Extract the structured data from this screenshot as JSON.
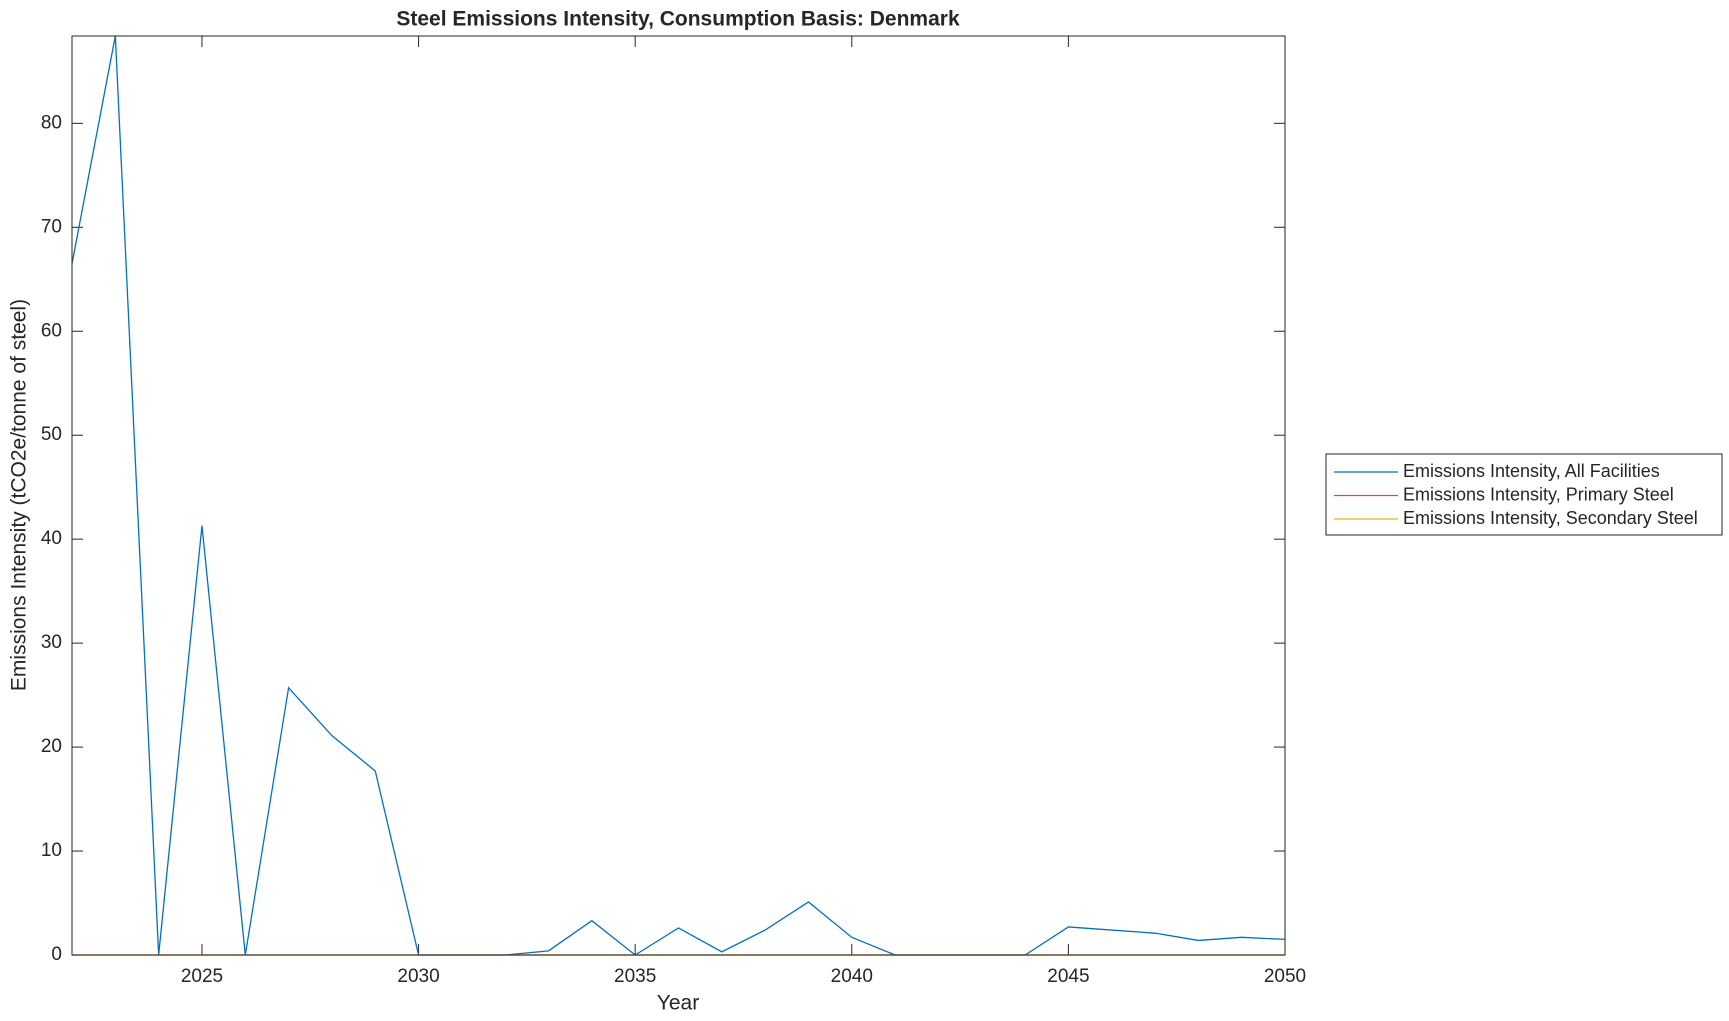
{
  "chart_data": {
    "type": "line",
    "title": "Steel Emissions Intensity, Consumption Basis: Denmark",
    "x_label": "Year",
    "y_label": "Emissions Intensity (tCO2e/tonne of steel)",
    "x": [
      2022,
      2023,
      2024,
      2025,
      2026,
      2027,
      2028,
      2029,
      2030,
      2031,
      2032,
      2033,
      2034,
      2035,
      2036,
      2037,
      2038,
      2039,
      2040,
      2041,
      2042,
      2043,
      2044,
      2045,
      2046,
      2047,
      2048,
      2049,
      2050
    ],
    "series": [
      {
        "name": "Emissions Intensity, All Facilities",
        "color": "#0072bd",
        "values": [
          66.5,
          88.4,
          0,
          41.3,
          0,
          25.7,
          21.1,
          17.7,
          0,
          0,
          0,
          0.4,
          3.3,
          0,
          2.6,
          0.3,
          2.4,
          5.1,
          1.7,
          0,
          0,
          0,
          0,
          2.7,
          2.4,
          2.1,
          1.4,
          1.7,
          1.5
        ]
      },
      {
        "name": "Emissions Intensity, Primary Steel",
        "color": "#d95319",
        "values": [
          0,
          0,
          0,
          0,
          0,
          0,
          0,
          0,
          0,
          0,
          0,
          0,
          0,
          0,
          0,
          0,
          0,
          0,
          0,
          0,
          0,
          0,
          0,
          0,
          0,
          0,
          0,
          0,
          0
        ]
      },
      {
        "name": "Emissions Intensity, Secondary Steel",
        "color": "#edb120",
        "values": [
          0,
          0,
          0,
          0,
          0,
          0,
          0,
          0,
          0,
          0,
          0,
          0,
          0,
          0,
          0,
          0,
          0,
          0,
          0,
          0,
          0,
          0,
          0,
          0,
          0,
          0,
          0,
          0,
          0
        ]
      }
    ],
    "xlim": [
      2022,
      2050
    ],
    "xticks": [
      2025,
      2030,
      2035,
      2040,
      2045,
      2050
    ],
    "ylim": [
      0,
      88.4
    ],
    "yticks": [
      0,
      10,
      20,
      30,
      40,
      50,
      60,
      70,
      80
    ],
    "legend": "outside-right"
  }
}
